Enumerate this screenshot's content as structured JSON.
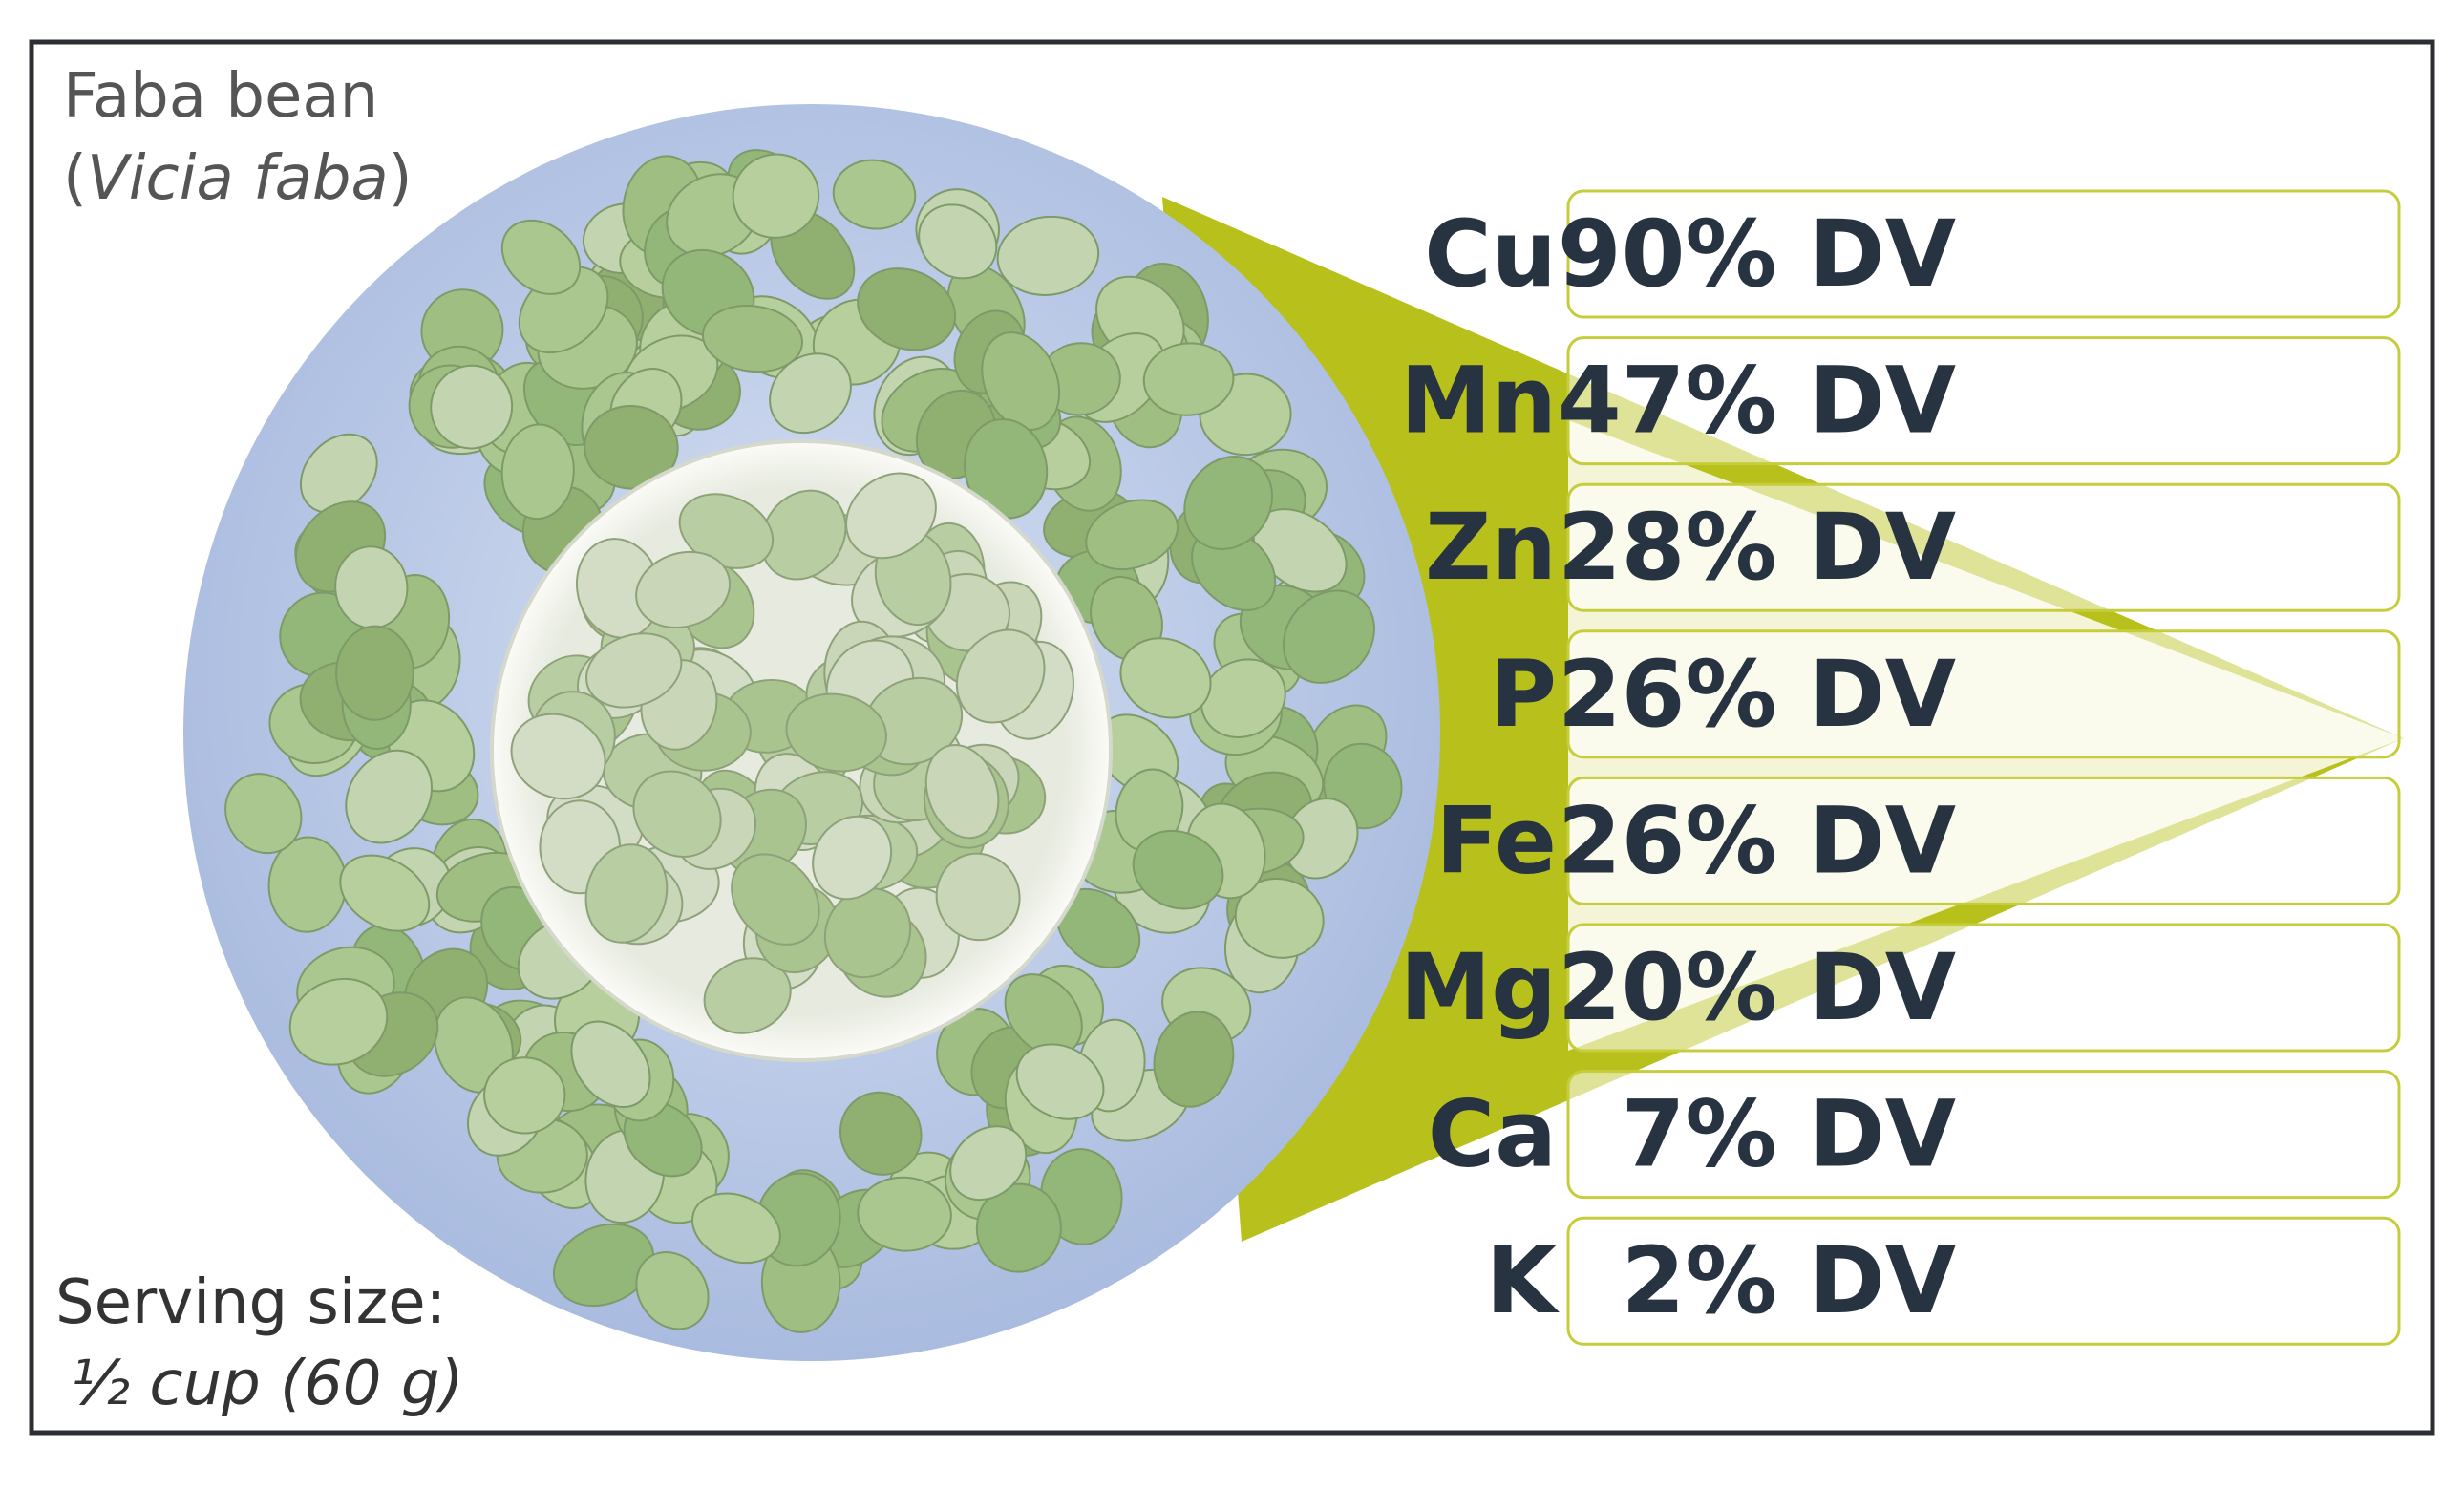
{
  "title": "Faba bean",
  "species": {
    "open": "(",
    "name": "Vicia faba",
    "close": ")"
  },
  "serving": {
    "label": "Serving size:",
    "amount": "½ cup (60 g)"
  },
  "nutrients": [
    {
      "element": "Cu",
      "dv": "90% DV"
    },
    {
      "element": "Mn",
      "dv": "47% DV"
    },
    {
      "element": "Zn",
      "dv": "28% DV"
    },
    {
      "element": "P",
      "dv": "26% DV"
    },
    {
      "element": "Fe",
      "dv": "26% DV"
    },
    {
      "element": "Mg",
      "dv": "20% DV"
    },
    {
      "element": "Ca",
      "dv": "7% DV"
    },
    {
      "element": "K",
      "dv": "2% DV"
    }
  ]
}
